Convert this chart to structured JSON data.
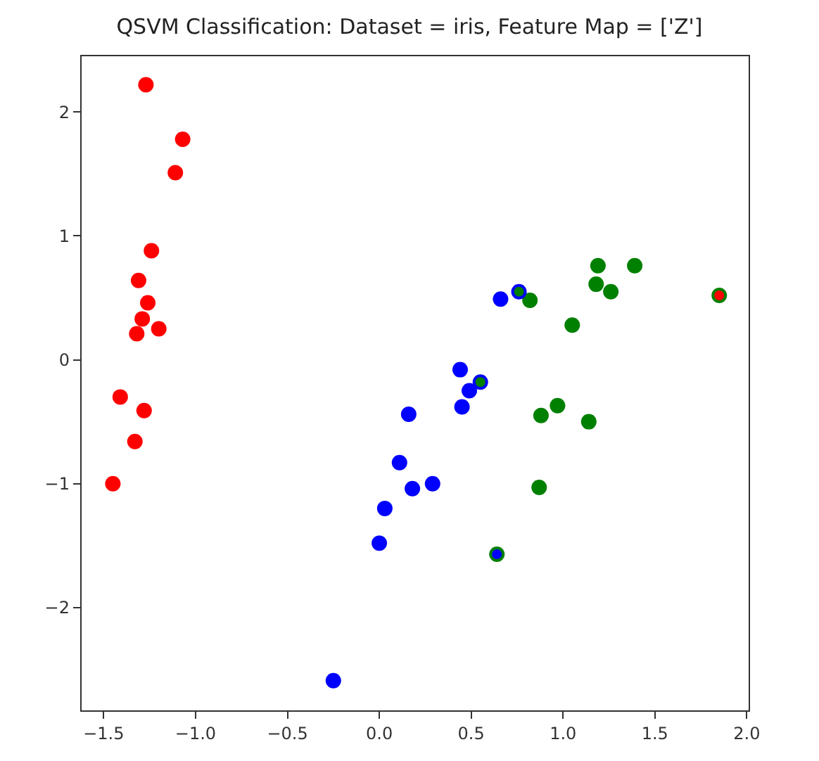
{
  "chart_data": {
    "type": "scatter",
    "title": "QSVM Classification: Dataset = iris, Feature Map = ['Z']",
    "xlim": [
      -1.62,
      2.01
    ],
    "ylim": [
      -2.83,
      2.45
    ],
    "xticks": [
      {
        "value": -1.5,
        "label": "−1.5"
      },
      {
        "value": -1.0,
        "label": "−1.0"
      },
      {
        "value": -0.5,
        "label": "−0.5"
      },
      {
        "value": 0.0,
        "label": "0.0"
      },
      {
        "value": 0.5,
        "label": "0.5"
      },
      {
        "value": 1.0,
        "label": "1.0"
      },
      {
        "value": 1.5,
        "label": "1.5"
      },
      {
        "value": 2.0,
        "label": "2.0"
      }
    ],
    "yticks": [
      {
        "value": -2,
        "label": "−2"
      },
      {
        "value": -1,
        "label": "−1"
      },
      0,
      1,
      2
    ],
    "marker": "circle",
    "series": [
      {
        "color": "#ff0000",
        "x": [
          -1.27,
          -1.07,
          -1.11,
          -1.24,
          -1.31,
          -1.26,
          -1.29,
          -1.32,
          -1.2,
          -1.41,
          -1.28,
          -1.33,
          -1.45
        ],
        "values": [
          2.22,
          1.78,
          1.51,
          0.88,
          0.64,
          0.46,
          0.33,
          0.21,
          0.25,
          -0.3,
          -0.41,
          -0.66,
          -1.0
        ]
      },
      {
        "color": "#008000",
        "x": [
          1.19,
          1.39,
          1.18,
          1.26,
          0.82,
          1.05,
          1.85,
          0.97,
          0.88,
          1.14,
          0.87,
          0.64
        ],
        "values": [
          0.76,
          0.76,
          0.61,
          0.55,
          0.48,
          0.28,
          0.52,
          -0.37,
          -0.45,
          -0.5,
          -1.03,
          -1.57
        ]
      },
      {
        "color": "#0000ff",
        "x": [
          0.66,
          0.76,
          0.44,
          0.55,
          0.49,
          0.45,
          0.16,
          0.11,
          0.18,
          0.29,
          0.03,
          0.0,
          -0.25
        ],
        "values": [
          0.49,
          0.55,
          -0.08,
          -0.18,
          -0.25,
          -0.38,
          -0.44,
          -0.83,
          -1.04,
          -1.0,
          -1.2,
          -1.48,
          -2.59
        ]
      },
      {
        "colors": [
          "#008000",
          "#008000",
          "#0000ff",
          "#ff0000"
        ],
        "x": [
          0.76,
          0.55,
          0.64,
          1.85
        ],
        "values": [
          0.55,
          -0.18,
          -1.57,
          0.52
        ]
      }
    ]
  }
}
